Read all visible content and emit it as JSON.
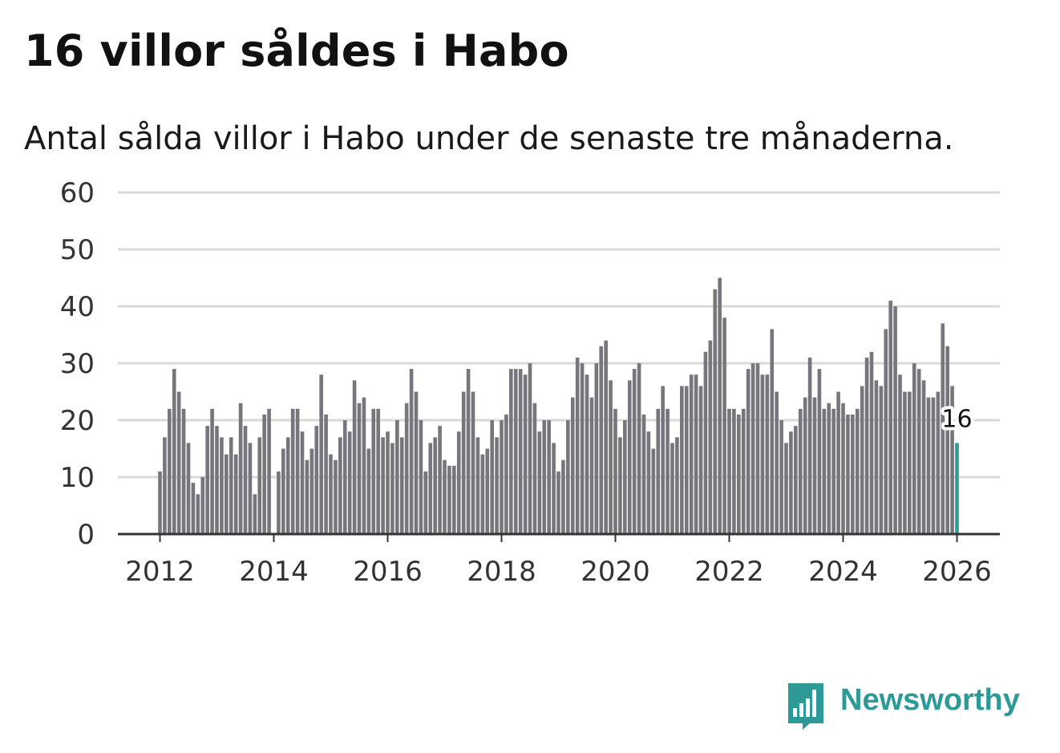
{
  "header": {
    "title": "16 villor såldes i Habo",
    "subtitle": "Antal sålda villor i Habo under de senaste tre månaderna."
  },
  "brand": {
    "name": "Newsworthy",
    "color": "#2e9a97",
    "icon": "bar-chart-speech-bubble-icon"
  },
  "colors": {
    "bar": "#76767c",
    "highlight": "#2b9c96",
    "grid": "#d9d9d9",
    "axis": "#333333"
  },
  "chart_data": {
    "type": "bar",
    "title": "16 villor såldes i Habo",
    "xlabel": "",
    "ylabel": "",
    "ylim": [
      0,
      60
    ],
    "yticks": [
      0,
      10,
      20,
      30,
      40,
      50,
      60
    ],
    "xticks": [
      "2012",
      "2014",
      "2016",
      "2018",
      "2020",
      "2022",
      "2024",
      "2026"
    ],
    "x_start": "2012-01",
    "x_end": "2026-01",
    "grid": true,
    "annotation": {
      "label": "16",
      "index": 168
    },
    "series": [
      {
        "name": "Antal sålda villor",
        "values": [
          11,
          17,
          22,
          29,
          25,
          22,
          16,
          9,
          7,
          10,
          19,
          22,
          19,
          17,
          14,
          17,
          14,
          23,
          19,
          16,
          7,
          17,
          21,
          22,
          0,
          11,
          15,
          17,
          22,
          22,
          18,
          13,
          15,
          19,
          28,
          21,
          14,
          13,
          17,
          20,
          18,
          27,
          23,
          24,
          15,
          22,
          22,
          17,
          18,
          16,
          20,
          17,
          23,
          29,
          25,
          20,
          11,
          16,
          17,
          19,
          13,
          12,
          12,
          18,
          25,
          29,
          25,
          17,
          14,
          15,
          20,
          17,
          20,
          21,
          29,
          29,
          29,
          28,
          30,
          23,
          18,
          20,
          20,
          16,
          11,
          13,
          20,
          24,
          31,
          30,
          28,
          24,
          30,
          33,
          34,
          27,
          22,
          17,
          20,
          27,
          29,
          30,
          21,
          18,
          15,
          22,
          26,
          22,
          16,
          17,
          26,
          26,
          28,
          28,
          26,
          32,
          34,
          43,
          45,
          38,
          22,
          22,
          21,
          22,
          29,
          30,
          30,
          28,
          28,
          36,
          25,
          20,
          16,
          18,
          19,
          22,
          24,
          31,
          24,
          29,
          22,
          23,
          22,
          25,
          23,
          21,
          21,
          22,
          26,
          31,
          32,
          27,
          26,
          36,
          41,
          40,
          28,
          25,
          25,
          30,
          29,
          27,
          24,
          24,
          25,
          37,
          33,
          26,
          16
        ]
      }
    ]
  }
}
